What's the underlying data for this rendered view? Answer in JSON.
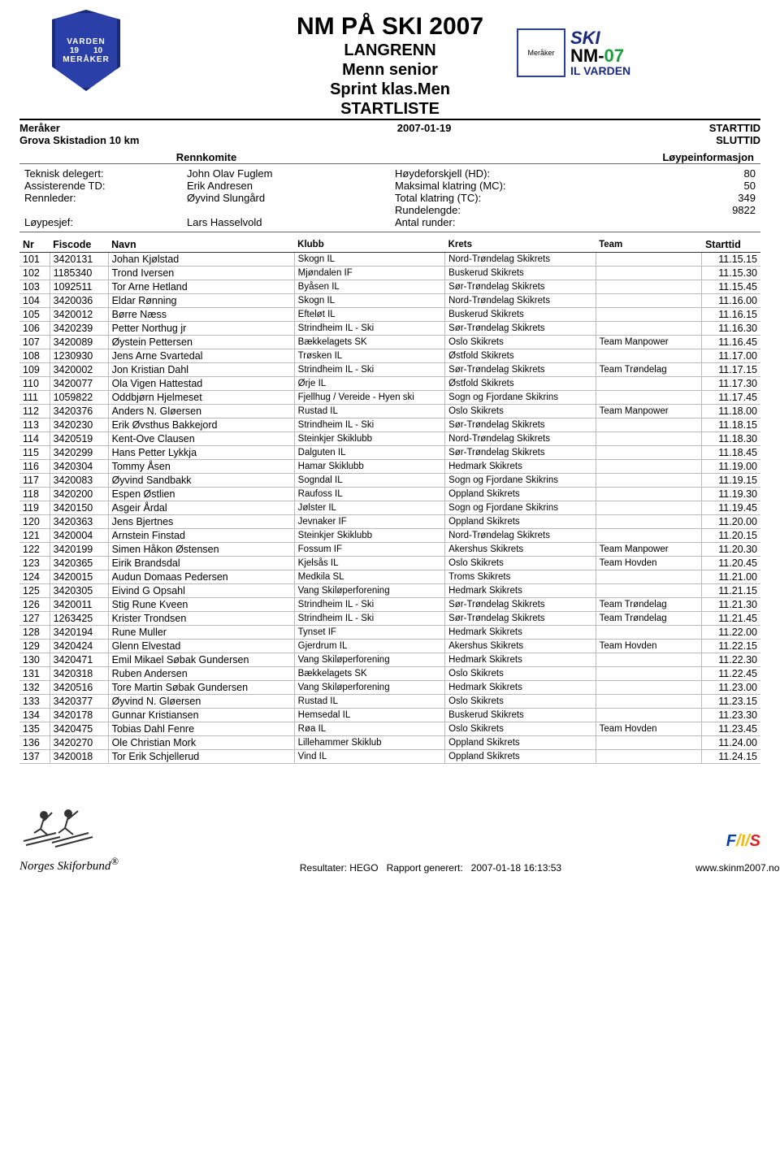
{
  "header": {
    "title": "NM PÅ SKI 2007",
    "sub1": "LANGRENN",
    "sub2": "Menn senior",
    "sub3": "Sprint klas.Men",
    "sub4": "STARTLISTE",
    "venue_line1": "Meråker",
    "venue_line2": "Grova Skistadion 10 km",
    "date": "2007-01-19",
    "starttid_label": "STARTTID",
    "sluttid_label": "SLUTTID",
    "left_logo_top": "VARDEN",
    "left_logo_yr1": "19",
    "left_logo_yr2": "10",
    "left_logo_bottom": "MERÅKER",
    "right_logo_ski": "SKI",
    "right_logo_nm": "NM-",
    "right_logo_07": "07",
    "right_logo_iv": "IL VARDEN",
    "right_logo_meraker": "Meråker"
  },
  "sections": {
    "rennkomite": "Rennkomite",
    "loypeinfo": "Løypeinformasjon"
  },
  "committee": {
    "teknisk_label": "Teknisk delegert:",
    "teknisk_val": "John Olav Fuglem",
    "assist_label": "Assisterende TD:",
    "assist_val": "Erik Andresen",
    "rennleder_label": "Rennleder:",
    "rennleder_val": "Øyvind Slungård",
    "loypesjef_label": "Løypesjef:",
    "loypesjef_val": "Lars Hasselvold"
  },
  "course": {
    "hd_label": "Høydeforskjell (HD):",
    "hd_val": "80",
    "mc_label": "Maksimal klatring (MC):",
    "mc_val": "50",
    "tc_label": "Total klatring (TC):",
    "tc_val": "349",
    "runde_label": "Rundelengde:",
    "runde_val": "9822",
    "antal_label": "Antal runder:",
    "antal_val": ""
  },
  "table": {
    "columns": [
      "Nr",
      "Fiscode",
      "Navn",
      "Klubb",
      "Krets",
      "Team",
      "Starttid"
    ],
    "rows": [
      [
        "101",
        "3420131",
        "Johan Kjølstad",
        "Skogn IL",
        "Nord-Trøndelag Skikrets",
        "",
        "11.15.15"
      ],
      [
        "102",
        "1185340",
        "Trond Iversen",
        "Mjøndalen IF",
        "Buskerud Skikrets",
        "",
        "11.15.30"
      ],
      [
        "103",
        "1092511",
        "Tor Arne Hetland",
        "Byåsen IL",
        "Sør-Trøndelag Skikrets",
        "",
        "11.15.45"
      ],
      [
        "104",
        "3420036",
        "Eldar Rønning",
        "Skogn IL",
        "Nord-Trøndelag Skikrets",
        "",
        "11.16.00"
      ],
      [
        "105",
        "3420012",
        "Børre Næss",
        "Efteløt IL",
        "Buskerud Skikrets",
        "",
        "11.16.15"
      ],
      [
        "106",
        "3420239",
        "Petter Northug jr",
        "Strindheim IL - Ski",
        "Sør-Trøndelag Skikrets",
        "",
        "11.16.30"
      ],
      [
        "107",
        "3420089",
        "Øystein Pettersen",
        "Bækkelagets SK",
        "Oslo Skikrets",
        "Team Manpower",
        "11.16.45"
      ],
      [
        "108",
        "1230930",
        "Jens Arne Svartedal",
        "Trøsken IL",
        "Østfold Skikrets",
        "",
        "11.17.00"
      ],
      [
        "109",
        "3420002",
        "Jon Kristian Dahl",
        "Strindheim IL - Ski",
        "Sør-Trøndelag Skikrets",
        "Team Trøndelag",
        "11.17.15"
      ],
      [
        "110",
        "3420077",
        "Ola Vigen Hattestad",
        "Ørje IL",
        "Østfold Skikrets",
        "",
        "11.17.30"
      ],
      [
        "111",
        "1059822",
        "Oddbjørn Hjelmeset",
        "Fjellhug / Vereide - Hyen ski",
        "Sogn og Fjordane Skikrins",
        "",
        "11.17.45"
      ],
      [
        "112",
        "3420376",
        "Anders N. Gløersen",
        "Rustad IL",
        "Oslo Skikrets",
        "Team Manpower",
        "11.18.00"
      ],
      [
        "113",
        "3420230",
        "Erik Øvsthus Bakkejord",
        "Strindheim IL - Ski",
        "Sør-Trøndelag Skikrets",
        "",
        "11.18.15"
      ],
      [
        "114",
        "3420519",
        "Kent-Ove Clausen",
        "Steinkjer Skiklubb",
        "Nord-Trøndelag Skikrets",
        "",
        "11.18.30"
      ],
      [
        "115",
        "3420299",
        "Hans Petter Lykkja",
        "Dalguten IL",
        "Sør-Trøndelag Skikrets",
        "",
        "11.18.45"
      ],
      [
        "116",
        "3420304",
        "Tommy Åsen",
        "Hamar Skiklubb",
        "Hedmark Skikrets",
        "",
        "11.19.00"
      ],
      [
        "117",
        "3420083",
        "Øyvind Sandbakk",
        "Sogndal IL",
        "Sogn og Fjordane Skikrins",
        "",
        "11.19.15"
      ],
      [
        "118",
        "3420200",
        "Espen Østlien",
        "Raufoss IL",
        "Oppland Skikrets",
        "",
        "11.19.30"
      ],
      [
        "119",
        "3420150",
        "Asgeir Årdal",
        "Jølster IL",
        "Sogn og Fjordane Skikrins",
        "",
        "11.19.45"
      ],
      [
        "120",
        "3420363",
        "Jens Bjertnes",
        "Jevnaker IF",
        "Oppland Skikrets",
        "",
        "11.20.00"
      ],
      [
        "121",
        "3420004",
        "Arnstein Finstad",
        "Steinkjer Skiklubb",
        "Nord-Trøndelag Skikrets",
        "",
        "11.20.15"
      ],
      [
        "122",
        "3420199",
        "Simen Håkon Østensen",
        "Fossum IF",
        "Akershus Skikrets",
        "Team Manpower",
        "11.20.30"
      ],
      [
        "123",
        "3420365",
        "Eirik Brandsdal",
        "Kjelsås IL",
        "Oslo Skikrets",
        "Team Hovden",
        "11.20.45"
      ],
      [
        "124",
        "3420015",
        "Audun Domaas Pedersen",
        "Medkila SL",
        "Troms Skikrets",
        "",
        "11.21.00"
      ],
      [
        "125",
        "3420305",
        "Eivind G Opsahl",
        "Vang Skiløperforening",
        "Hedmark Skikrets",
        "",
        "11.21.15"
      ],
      [
        "126",
        "3420011",
        "Stig Rune Kveen",
        "Strindheim IL - Ski",
        "Sør-Trøndelag Skikrets",
        "Team Trøndelag",
        "11.21.30"
      ],
      [
        "127",
        "1263425",
        "Krister Trondsen",
        "Strindheim IL - Ski",
        "Sør-Trøndelag Skikrets",
        "Team Trøndelag",
        "11.21.45"
      ],
      [
        "128",
        "3420194",
        "Rune Muller",
        "Tynset IF",
        "Hedmark Skikrets",
        "",
        "11.22.00"
      ],
      [
        "129",
        "3420424",
        "Glenn Elvestad",
        "Gjerdrum IL",
        "Akershus Skikrets",
        "Team Hovden",
        "11.22.15"
      ],
      [
        "130",
        "3420471",
        "Emil Mikael Søbak Gundersen",
        "Vang Skiløperforening",
        "Hedmark Skikrets",
        "",
        "11.22.30"
      ],
      [
        "131",
        "3420318",
        "Ruben Andersen",
        "Bækkelagets SK",
        "Oslo Skikrets",
        "",
        "11.22.45"
      ],
      [
        "132",
        "3420516",
        "Tore Martin Søbak Gundersen",
        "Vang Skiløperforening",
        "Hedmark Skikrets",
        "",
        "11.23.00"
      ],
      [
        "133",
        "3420377",
        "Øyvind N. Gløersen",
        "Rustad IL",
        "Oslo Skikrets",
        "",
        "11.23.15"
      ],
      [
        "134",
        "3420178",
        "Gunnar Kristiansen",
        "Hemsedal IL",
        "Buskerud Skikrets",
        "",
        "11.23.30"
      ],
      [
        "135",
        "3420475",
        "Tobias Dahl Fenre",
        "Røa IL",
        "Oslo Skikrets",
        "Team Hovden",
        "11.23.45"
      ],
      [
        "136",
        "3420270",
        "Ole Christian Mork",
        "Lillehammer Skiklub",
        "Oppland Skikrets",
        "",
        "11.24.00"
      ],
      [
        "137",
        "3420018",
        "Tor Erik Schjellerud",
        "Vind IL",
        "Oppland Skikrets",
        "",
        "11.24.15"
      ]
    ]
  },
  "footer": {
    "nsf": "Norges Skiforbund",
    "resultater_label": "Resultater: HEGO",
    "rapport_label": "Rapport generert:",
    "rapport_ts": "2007-01-18 16:13:53",
    "url": "www.skinm2007.no",
    "fis_f": "F",
    "fis_i": "/I/",
    "fis_s": "S"
  }
}
